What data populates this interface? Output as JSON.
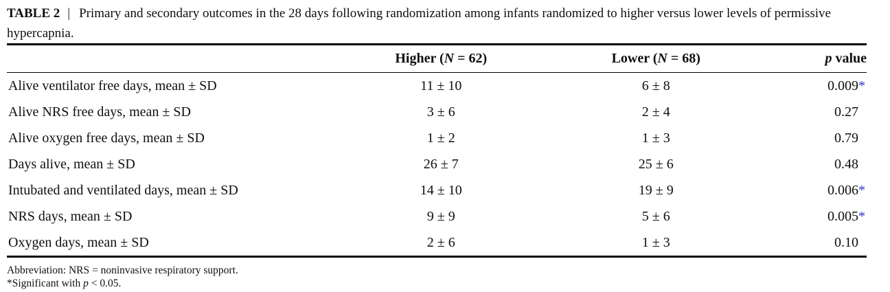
{
  "title": {
    "label": "TABLE 2",
    "separator": "|",
    "text": "Primary and secondary outcomes in the 28 days following randomization among infants randomized to higher versus lower levels of permissive hypercapnia."
  },
  "table": {
    "header": {
      "higher": {
        "prefix": "Higher (",
        "n_label": "N",
        "suffix": " = 62)"
      },
      "lower": {
        "prefix": "Lower (",
        "n_label": "N",
        "suffix": " = 68)"
      },
      "p": {
        "italic": "p",
        "rest": " value"
      }
    },
    "star_symbol": "*",
    "rows": [
      {
        "label": "Alive ventilator free days, mean ± SD",
        "higher": "11 ± 10",
        "lower": "6 ± 8",
        "p": "0.009",
        "significant": true
      },
      {
        "label": "Alive NRS free days, mean ± SD",
        "higher": "3 ± 6",
        "lower": "2 ± 4",
        "p": "0.27",
        "significant": false
      },
      {
        "label": "Alive oxygen free days, mean ± SD",
        "higher": "1 ± 2",
        "lower": "1 ± 3",
        "p": "0.79",
        "significant": false
      },
      {
        "label": "Days alive, mean ± SD",
        "higher": "26 ± 7",
        "lower": "25 ± 6",
        "p": "0.48",
        "significant": false
      },
      {
        "label": "Intubated and ventilated days, mean ± SD",
        "higher": "14 ± 10",
        "lower": "19 ± 9",
        "p": "0.006",
        "significant": true
      },
      {
        "label": "NRS days, mean ± SD",
        "higher": "9 ± 9",
        "lower": "5 ± 6",
        "p": "0.005",
        "significant": true
      },
      {
        "label": "Oxygen days, mean ± SD",
        "higher": "2 ± 6",
        "lower": "1 ± 3",
        "p": "0.10",
        "significant": false
      }
    ]
  },
  "footnotes": {
    "abbreviation": "Abbreviation: NRS = noninvasive respiratory support.",
    "significance": {
      "prefix": "*Significant with ",
      "italic": "p",
      "rest": " < 0.05."
    }
  },
  "colors": {
    "text": "#0f0f0f",
    "significant_star": "#3333cc"
  }
}
